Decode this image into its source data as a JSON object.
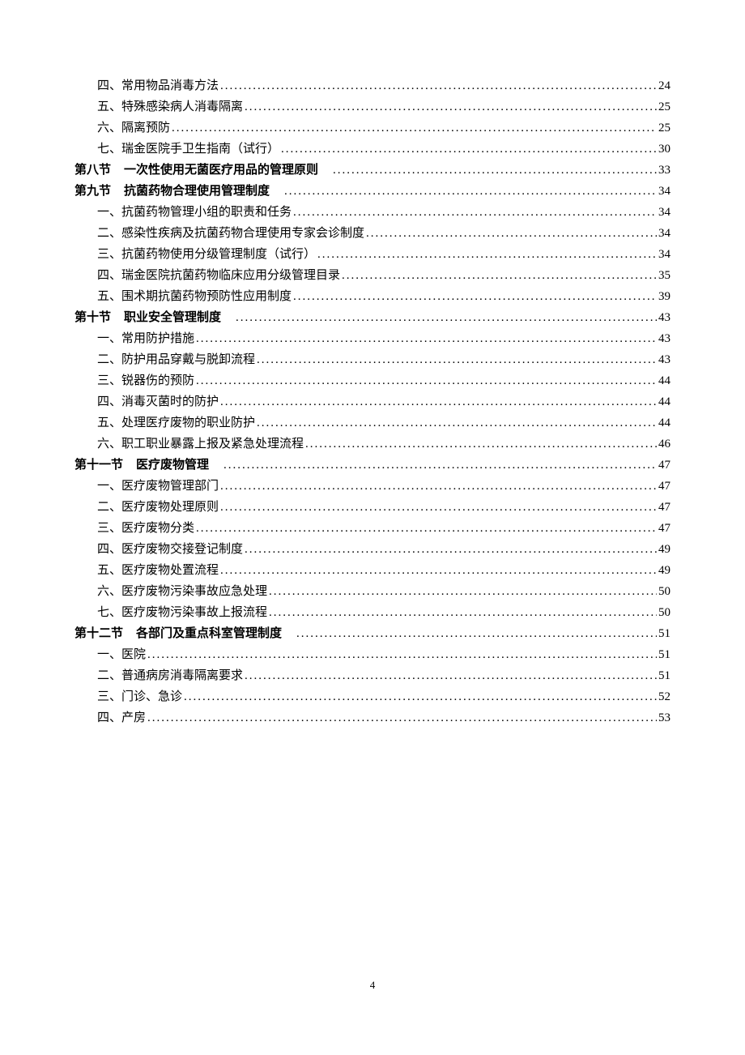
{
  "page_number": "4",
  "toc_entries": [
    {
      "level": 2,
      "label": "四、常用物品消毒方法",
      "page": "24"
    },
    {
      "level": 2,
      "label": "五、特殊感染病人消毒隔离",
      "page": "25"
    },
    {
      "level": 2,
      "label": "六、隔离预防",
      "page": "25"
    },
    {
      "level": 2,
      "label": "七、瑞金医院手卫生指南（试行）",
      "page": "30"
    },
    {
      "level": 1,
      "section": "第八节",
      "label": "一次性使用无菌医疗用品的管理原则",
      "page": "33"
    },
    {
      "level": 1,
      "section": "第九节",
      "label": "抗菌药物合理使用管理制度",
      "page": "34"
    },
    {
      "level": 2,
      "label": "一、抗菌药物管理小组的职责和任务",
      "page": "34"
    },
    {
      "level": 2,
      "label": "二、感染性疾病及抗菌药物合理使用专家会诊制度",
      "page": "34"
    },
    {
      "level": 2,
      "label": "三、抗菌药物使用分级管理制度（试行）",
      "page": "34"
    },
    {
      "level": 2,
      "label": "四、瑞金医院抗菌药物临床应用分级管理目录",
      "page": "35"
    },
    {
      "level": 2,
      "label": "五、围术期抗菌药物预防性应用制度",
      "page": "39"
    },
    {
      "level": 1,
      "section": "第十节",
      "label": "职业安全管理制度",
      "page": "43"
    },
    {
      "level": 2,
      "label": "一、常用防护措施",
      "page": "43"
    },
    {
      "level": 2,
      "label": "二、防护用品穿戴与脱卸流程",
      "page": "43"
    },
    {
      "level": 2,
      "label": "三、锐器伤的预防",
      "page": "44"
    },
    {
      "level": 2,
      "label": "四、消毒灭菌时的防护",
      "page": "44"
    },
    {
      "level": 2,
      "label": "五、处理医疗废物的职业防护",
      "page": "44"
    },
    {
      "level": 2,
      "label": "六、职工职业暴露上报及紧急处理流程",
      "page": "46"
    },
    {
      "level": 1,
      "section": "第十一节",
      "label": "医疗废物管理",
      "page": "47"
    },
    {
      "level": 2,
      "label": "一、医疗废物管理部门",
      "page": "47"
    },
    {
      "level": 2,
      "label": "二、医疗废物处理原则",
      "page": "47"
    },
    {
      "level": 2,
      "label": "三、医疗废物分类",
      "page": "47"
    },
    {
      "level": 2,
      "label": "四、医疗废物交接登记制度",
      "page": "49"
    },
    {
      "level": 2,
      "label": "五、医疗废物处置流程",
      "page": "49"
    },
    {
      "level": 2,
      "label": "六、医疗废物污染事故应急处理",
      "page": "50"
    },
    {
      "level": 2,
      "label": "七、医疗废物污染事故上报流程",
      "page": "50"
    },
    {
      "level": 1,
      "section": "第十二节",
      "label": "各部门及重点科室管理制度",
      "page": "51"
    },
    {
      "level": 2,
      "label": "一、医院",
      "page": "51"
    },
    {
      "level": 2,
      "label": "二、普通病房消毒隔离要求",
      "page": "51"
    },
    {
      "level": 2,
      "label": "三、门诊、急诊",
      "page": "52"
    },
    {
      "level": 2,
      "label": "四、产房",
      "page": "53"
    }
  ]
}
